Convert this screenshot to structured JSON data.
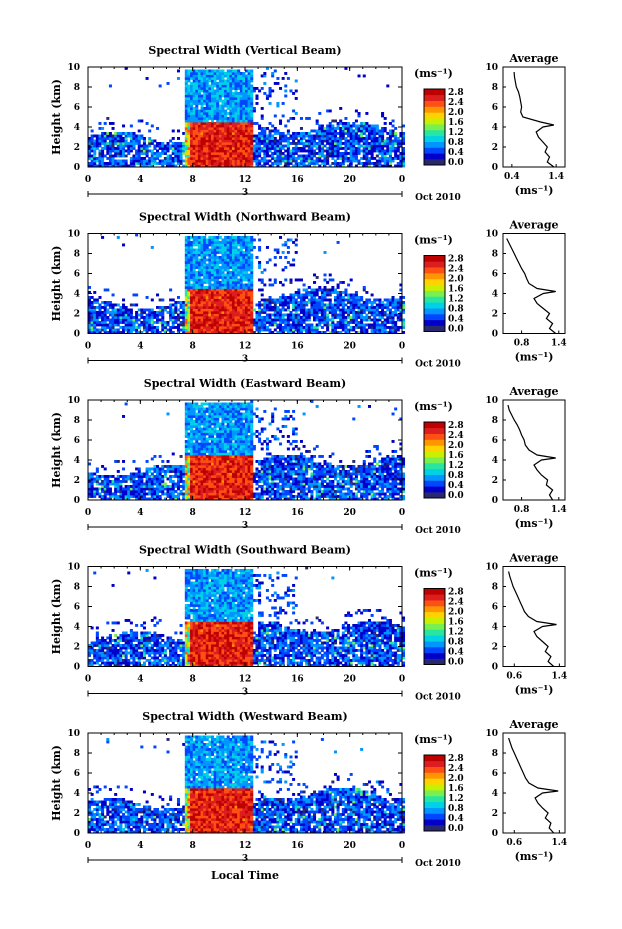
{
  "figure": {
    "common_xlabel": "Local Time",
    "date_label": "Oct 2010",
    "day_label": "3",
    "colorbar_unit_label": "(ms⁻¹)",
    "profile_title": "Average",
    "profile_xlabel": "(ms⁻¹)"
  },
  "colors": {
    "scale": [
      "#28286e",
      "#0000c8",
      "#0046ff",
      "#0096ff",
      "#00d2e6",
      "#28e6a0",
      "#78f050",
      "#c8f000",
      "#ffd200",
      "#ff9600",
      "#ff5014",
      "#dc1e1e",
      "#be0000"
    ]
  },
  "chart_data": [
    {
      "type": "heatmap",
      "title": "Spectral Width (Vertical Beam)",
      "ylabel": "Height (km)",
      "xlabel": "Local Time",
      "xlim": [
        0,
        24
      ],
      "ylim": [
        0,
        10
      ],
      "xticks": [
        "0",
        "4",
        "8",
        "12",
        "16",
        "20",
        "0"
      ],
      "yticks": [
        "0",
        "2",
        "4",
        "6",
        "8",
        "10"
      ],
      "colorbar": {
        "ticks": [
          "0.0",
          "0.4",
          "0.8",
          "1.2",
          "1.6",
          "2.0",
          "2.4",
          "2.8"
        ],
        "range": [
          0,
          3.0
        ]
      },
      "features": {
        "cloud_base_km": 4.5,
        "cloud_top_km": 9.8,
        "cloud_start_h": 7.5,
        "cloud_end_h": 12.5,
        "boundary_layer_top_km": 3.0
      },
      "profile": {
        "title": "Average",
        "xlabel": "(ms⁻¹)",
        "xticks": [
          "0.4",
          "1.4"
        ],
        "xlim": [
          0.2,
          1.6
        ],
        "yticks": [
          "0",
          "2",
          "4",
          "6",
          "8",
          "10"
        ],
        "height_km": [
          0,
          0.5,
          1,
          1.5,
          2,
          2.5,
          3,
          3.5,
          4,
          4.2,
          4.5,
          5,
          5.5,
          6,
          6.5,
          7,
          7.5,
          8,
          8.5,
          9,
          9.5
        ],
        "width": [
          1.35,
          1.2,
          1.25,
          1.15,
          1.2,
          1.1,
          1.0,
          0.95,
          1.1,
          1.35,
          1.05,
          0.65,
          0.6,
          0.62,
          0.6,
          0.58,
          0.55,
          0.5,
          0.48,
          0.46,
          0.45
        ]
      }
    },
    {
      "type": "heatmap",
      "title": "Spectral Width (Northward Beam)",
      "ylabel": "Height (km)",
      "xlabel": "Local Time",
      "xlim": [
        0,
        24
      ],
      "ylim": [
        0,
        10
      ],
      "xticks": [
        "0",
        "4",
        "8",
        "12",
        "16",
        "20",
        "0"
      ],
      "yticks": [
        "0",
        "2",
        "4",
        "6",
        "8",
        "10"
      ],
      "colorbar": {
        "ticks": [
          "0.0",
          "0.4",
          "0.8",
          "1.2",
          "1.6",
          "2.0",
          "2.4",
          "2.8"
        ],
        "range": [
          0,
          3.0
        ]
      },
      "features": {
        "cloud_base_km": 4.5,
        "cloud_top_km": 9.8,
        "cloud_start_h": 7.5,
        "cloud_end_h": 12.5,
        "boundary_layer_top_km": 3.0
      },
      "profile": {
        "title": "Average",
        "xlabel": "(ms⁻¹)",
        "xticks": [
          "0.8",
          "1.4"
        ],
        "xlim": [
          0.5,
          1.5
        ],
        "yticks": [
          "0",
          "2",
          "4",
          "6",
          "8",
          "10"
        ],
        "height_km": [
          0,
          0.5,
          1,
          1.5,
          2,
          2.5,
          3,
          3.5,
          4,
          4.2,
          4.5,
          5,
          5.5,
          6,
          6.5,
          7,
          7.5,
          8,
          8.5,
          9,
          9.5
        ],
        "width": [
          1.35,
          1.25,
          1.3,
          1.2,
          1.25,
          1.15,
          1.05,
          1.0,
          1.15,
          1.35,
          1.05,
          0.92,
          0.88,
          0.85,
          0.8,
          0.76,
          0.72,
          0.68,
          0.64,
          0.6,
          0.56
        ]
      }
    },
    {
      "type": "heatmap",
      "title": "Spectral Width (Eastward Beam)",
      "ylabel": "Height (km)",
      "xlabel": "Local Time",
      "xlim": [
        0,
        24
      ],
      "ylim": [
        0,
        10
      ],
      "xticks": [
        "0",
        "4",
        "8",
        "12",
        "16",
        "20",
        "0"
      ],
      "yticks": [
        "0",
        "2",
        "4",
        "6",
        "8",
        "10"
      ],
      "colorbar": {
        "ticks": [
          "0.0",
          "0.4",
          "0.8",
          "1.2",
          "1.6",
          "2.0",
          "2.4",
          "2.8"
        ],
        "range": [
          0,
          3.0
        ]
      },
      "features": {
        "cloud_base_km": 4.5,
        "cloud_top_km": 9.8,
        "cloud_start_h": 7.5,
        "cloud_end_h": 12.5,
        "boundary_layer_top_km": 3.0
      },
      "profile": {
        "title": "Average",
        "xlabel": "(ms⁻¹)",
        "xticks": [
          "0.8",
          "1.4"
        ],
        "xlim": [
          0.5,
          1.5
        ],
        "yticks": [
          "0",
          "2",
          "4",
          "6",
          "8",
          "10"
        ],
        "height_km": [
          0,
          0.5,
          1,
          1.5,
          2,
          2.5,
          3,
          3.5,
          4,
          4.2,
          4.5,
          5,
          5.5,
          6,
          6.5,
          7,
          7.5,
          8,
          8.5,
          9,
          9.5
        ],
        "width": [
          1.3,
          1.25,
          1.3,
          1.2,
          1.22,
          1.12,
          1.05,
          1.0,
          1.12,
          1.35,
          1.05,
          0.92,
          0.86,
          0.84,
          0.8,
          0.77,
          0.73,
          0.68,
          0.64,
          0.6,
          0.58
        ]
      }
    },
    {
      "type": "heatmap",
      "title": "Spectral Width (Southward Beam)",
      "ylabel": "Height (km)",
      "xlabel": "Local Time",
      "xlim": [
        0,
        24
      ],
      "ylim": [
        0,
        10
      ],
      "xticks": [
        "0",
        "4",
        "8",
        "12",
        "16",
        "20",
        "0"
      ],
      "yticks": [
        "0",
        "2",
        "4",
        "6",
        "8",
        "10"
      ],
      "colorbar": {
        "ticks": [
          "0.0",
          "0.4",
          "0.8",
          "1.2",
          "1.6",
          "2.0",
          "2.4",
          "2.8"
        ],
        "range": [
          0,
          3.0
        ]
      },
      "features": {
        "cloud_base_km": 4.5,
        "cloud_top_km": 9.8,
        "cloud_start_h": 7.5,
        "cloud_end_h": 12.5,
        "boundary_layer_top_km": 3.0
      },
      "profile": {
        "title": "Average",
        "xlabel": "(ms⁻¹)",
        "xticks": [
          "0.6",
          "1.4"
        ],
        "xlim": [
          0.4,
          1.5
        ],
        "yticks": [
          "0",
          "2",
          "4",
          "6",
          "8",
          "10"
        ],
        "height_km": [
          0,
          0.5,
          1,
          1.5,
          2,
          2.5,
          3,
          3.5,
          4,
          4.2,
          4.5,
          5,
          5.5,
          6,
          6.5,
          7,
          7.5,
          8,
          8.5,
          9,
          9.5
        ],
        "width": [
          1.3,
          1.2,
          1.25,
          1.15,
          1.2,
          1.1,
          1.0,
          0.95,
          1.1,
          1.35,
          1.0,
          0.85,
          0.78,
          0.74,
          0.7,
          0.66,
          0.62,
          0.58,
          0.55,
          0.52,
          0.5
        ]
      }
    },
    {
      "type": "heatmap",
      "title": "Spectral Width (Westward Beam)",
      "ylabel": "Height (km)",
      "xlabel": "Local Time",
      "xlim": [
        0,
        24
      ],
      "ylim": [
        0,
        10
      ],
      "xticks": [
        "0",
        "4",
        "8",
        "12",
        "16",
        "20",
        "0"
      ],
      "yticks": [
        "0",
        "2",
        "4",
        "6",
        "8",
        "10"
      ],
      "colorbar": {
        "ticks": [
          "0.0",
          "0.4",
          "0.8",
          "1.2",
          "1.6",
          "2.0",
          "2.4",
          "2.8"
        ],
        "range": [
          0,
          3.0
        ]
      },
      "features": {
        "cloud_base_km": 4.5,
        "cloud_top_km": 9.8,
        "cloud_start_h": 7.5,
        "cloud_end_h": 12.5,
        "boundary_layer_top_km": 3.0
      },
      "profile": {
        "title": "Average",
        "xlabel": "(ms⁻¹)",
        "xticks": [
          "0.6",
          "1.4"
        ],
        "xlim": [
          0.4,
          1.5
        ],
        "yticks": [
          "0",
          "2",
          "4",
          "6",
          "8",
          "10"
        ],
        "height_km": [
          0,
          0.5,
          1,
          1.5,
          2,
          2.5,
          3,
          3.5,
          4,
          4.2,
          4.5,
          5,
          5.5,
          6,
          6.5,
          7,
          7.5,
          8,
          8.5,
          9,
          9.5
        ],
        "width": [
          1.3,
          1.22,
          1.25,
          1.15,
          1.2,
          1.1,
          1.02,
          0.97,
          1.1,
          1.38,
          1.02,
          0.86,
          0.8,
          0.76,
          0.72,
          0.68,
          0.64,
          0.6,
          0.56,
          0.53,
          0.5
        ]
      }
    }
  ]
}
